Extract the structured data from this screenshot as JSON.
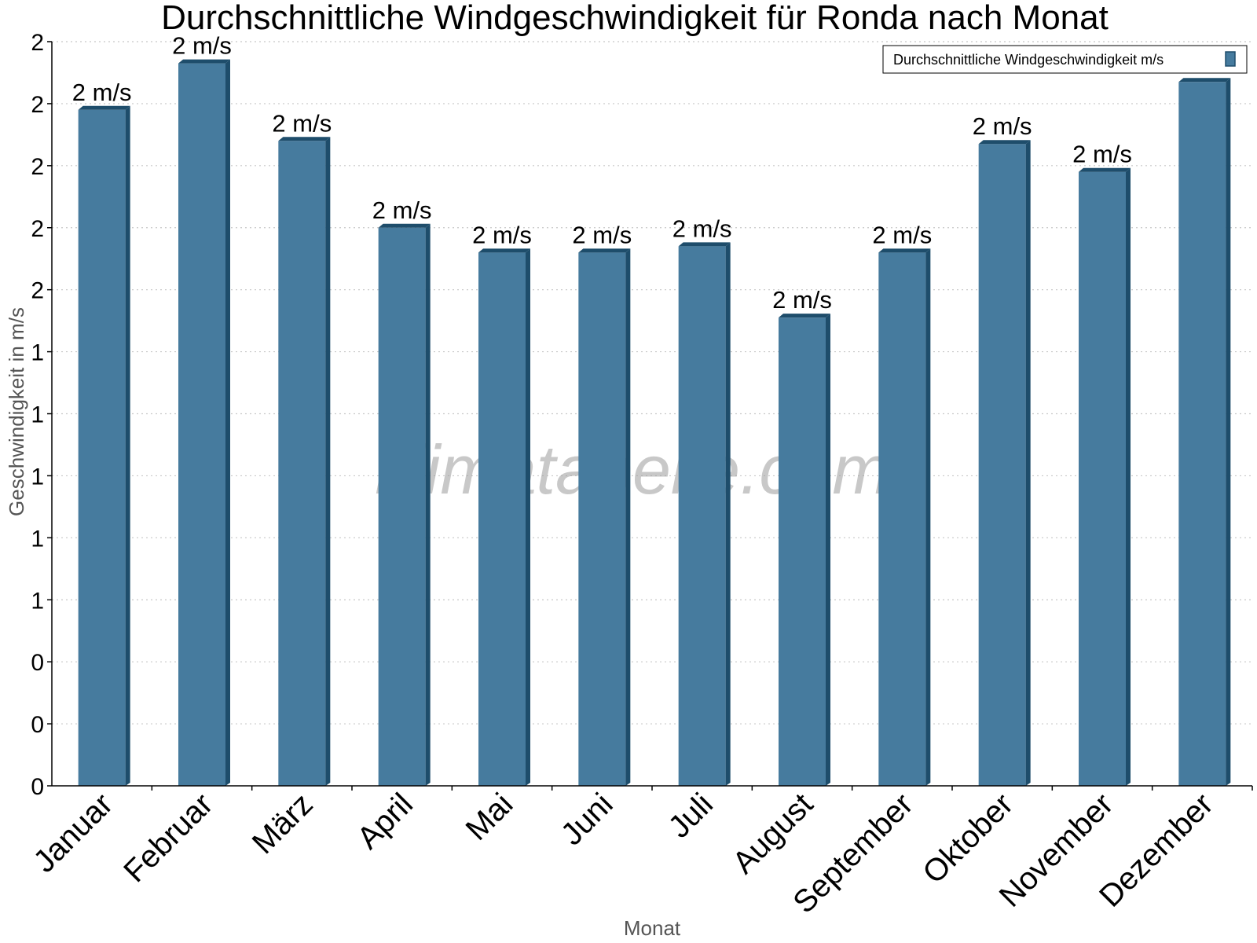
{
  "chart_data": {
    "type": "bar",
    "title": "Durchschnittliche Windgeschwindigkeit für Ronda nach Monat",
    "xlabel": "Monat",
    "ylabel": "Geschwindigkeit in m/s",
    "categories": [
      "Januar",
      "Februar",
      "März",
      "April",
      "Mai",
      "Juni",
      "Juli",
      "August",
      "September",
      "Oktober",
      "November",
      "Dezember"
    ],
    "series": [
      {
        "name": "Durchschnittliche Windgeschwindigkeit m/s",
        "values": [
          2.18,
          2.33,
          2.08,
          1.8,
          1.72,
          1.72,
          1.74,
          1.51,
          1.72,
          2.07,
          1.98,
          2.27
        ],
        "data_labels": [
          "2 m/s",
          "2 m/s",
          "2 m/s",
          "2 m/s",
          "2 m/s",
          "2 m/s",
          "2 m/s",
          "2 m/s",
          "2 m/s",
          "2 m/s",
          "2 m/s",
          "2 m/s"
        ]
      }
    ],
    "ylim": [
      0,
      2.4
    ],
    "y_ticks": [
      0,
      0.2,
      0.4,
      0.6,
      0.8,
      1.0,
      1.2,
      1.4,
      1.6,
      1.8,
      2.0,
      2.2,
      2.4
    ],
    "y_tick_labels": [
      "0",
      "0",
      "0",
      "1",
      "1",
      "1",
      "1",
      "1",
      "2",
      "2",
      "2",
      "2",
      "2"
    ],
    "grid": true,
    "legend_position": "top-right",
    "colors": {
      "bar": "#467b9e",
      "bar_shade": "#1e4d6b",
      "grid": "#c8c8c8",
      "axis": "#000000"
    },
    "watermark": "klimatabelle.com"
  }
}
